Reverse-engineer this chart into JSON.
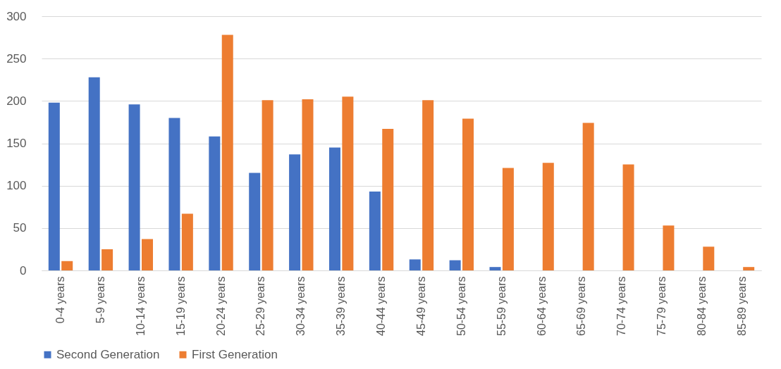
{
  "chart_data": {
    "type": "bar",
    "categories": [
      "0-4 years",
      "5-9 years",
      "10-14 years",
      "15-19 years",
      "20-24 years",
      "25-29 years",
      "30-34 years",
      "35-39 years",
      "40-44 years",
      "45-49 years",
      "50-54 years",
      "55-59 years",
      "60-64 years",
      "65-69 years",
      "70-74 years",
      "75-79 years",
      "80-84 years",
      "85-89 years"
    ],
    "series": [
      {
        "name": "Second Generation",
        "color": "#4472c4",
        "values": [
          198,
          228,
          196,
          180,
          158,
          115,
          137,
          145,
          93,
          13,
          12,
          4,
          0,
          0,
          0,
          0,
          0,
          0
        ]
      },
      {
        "name": "First Generation",
        "color": "#ed7d31",
        "values": [
          11,
          25,
          37,
          67,
          278,
          201,
          202,
          205,
          167,
          201,
          179,
          121,
          127,
          174,
          125,
          53,
          28,
          4
        ]
      }
    ],
    "ylim": [
      0,
      300
    ],
    "yticks": [
      0,
      50,
      100,
      150,
      200,
      250,
      300
    ],
    "grid": "y",
    "legend": "bottom"
  }
}
